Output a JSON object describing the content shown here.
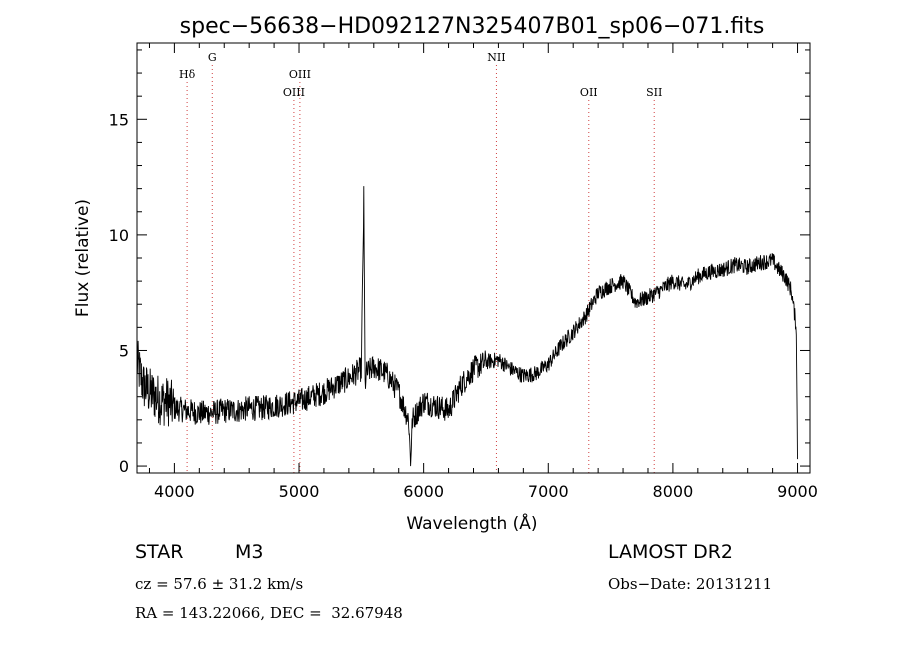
{
  "chart_data": {
    "type": "line",
    "title": "spec−56638−HD092127N325407B01_sp06−071.fits",
    "xlabel": "Wavelength (Å)",
    "ylabel": "Flux (relative)",
    "xlim": [
      3700,
      9100
    ],
    "ylim": [
      -0.3,
      18.3
    ],
    "xticks": [
      4000,
      5000,
      6000,
      7000,
      8000,
      9000
    ],
    "xtick_labels": [
      "4000",
      "5000",
      "6000",
      "7000",
      "8000",
      "9000"
    ],
    "yticks": [
      0,
      5,
      10,
      15
    ],
    "ytick_labels": [
      "0",
      "5",
      "10",
      "15"
    ],
    "grid": false,
    "line_color": "#000000",
    "marker_line_color": "#d04040",
    "spectral_lines": [
      {
        "label": "Hδ",
        "wavelength": 4102,
        "row": 1
      },
      {
        "label": "G",
        "wavelength": 4304,
        "row": 0
      },
      {
        "label": "OIII",
        "wavelength": 4959,
        "row": 2
      },
      {
        "label": "OIII",
        "wavelength": 5007,
        "row": 1
      },
      {
        "label": "NII",
        "wavelength": 6584,
        "row": 0
      },
      {
        "label": "OII",
        "wavelength": 7325,
        "row": 2
      },
      {
        "label": "SII",
        "wavelength": 7850,
        "row": 2
      }
    ],
    "series": [
      {
        "x": [
          3700,
          3750,
          3800,
          3850,
          3900,
          3950,
          4000,
          4100,
          4200,
          4300,
          4400,
          4500,
          4600,
          4700,
          4800,
          4900,
          5000,
          5100,
          5200,
          5300,
          5400,
          5500,
          5520,
          5530,
          5540,
          5600,
          5700,
          5800,
          5880,
          5895,
          5910,
          6000,
          6100,
          6200,
          6300,
          6400,
          6500,
          6600,
          6700,
          6800,
          6900,
          7000,
          7100,
          7200,
          7300,
          7400,
          7500,
          7600,
          7700,
          7800,
          7900,
          8000,
          8100,
          8200,
          8300,
          8400,
          8500,
          8600,
          8700,
          8800,
          8850,
          8900,
          8950,
          8990,
          9000
        ],
        "y": [
          4.5,
          3.5,
          3.2,
          3.0,
          2.8,
          2.8,
          2.5,
          2.4,
          2.3,
          2.3,
          2.4,
          2.4,
          2.5,
          2.5,
          2.6,
          2.7,
          2.8,
          3.0,
          3.2,
          3.5,
          3.8,
          4.2,
          11.6,
          3.5,
          4.0,
          4.3,
          4.0,
          3.2,
          2.0,
          0.2,
          2.0,
          2.8,
          2.6,
          2.4,
          3.5,
          4.2,
          4.5,
          4.6,
          4.2,
          3.9,
          4.0,
          4.4,
          5.2,
          5.8,
          6.5,
          7.5,
          7.8,
          8.0,
          7.1,
          7.3,
          7.6,
          8.0,
          7.8,
          8.2,
          8.4,
          8.5,
          8.7,
          8.6,
          8.8,
          8.9,
          8.5,
          8.2,
          7.6,
          6.0,
          0.3
        ]
      }
    ]
  },
  "info": {
    "object_class": "STAR",
    "subclass": "M3",
    "survey": "LAMOST DR2",
    "redshift": "cz = 57.6 ± 31.2 km/s",
    "obs_date": "Obs−Date: 20131211",
    "coords": "RA = 143.22066, DEC =  32.67948"
  }
}
